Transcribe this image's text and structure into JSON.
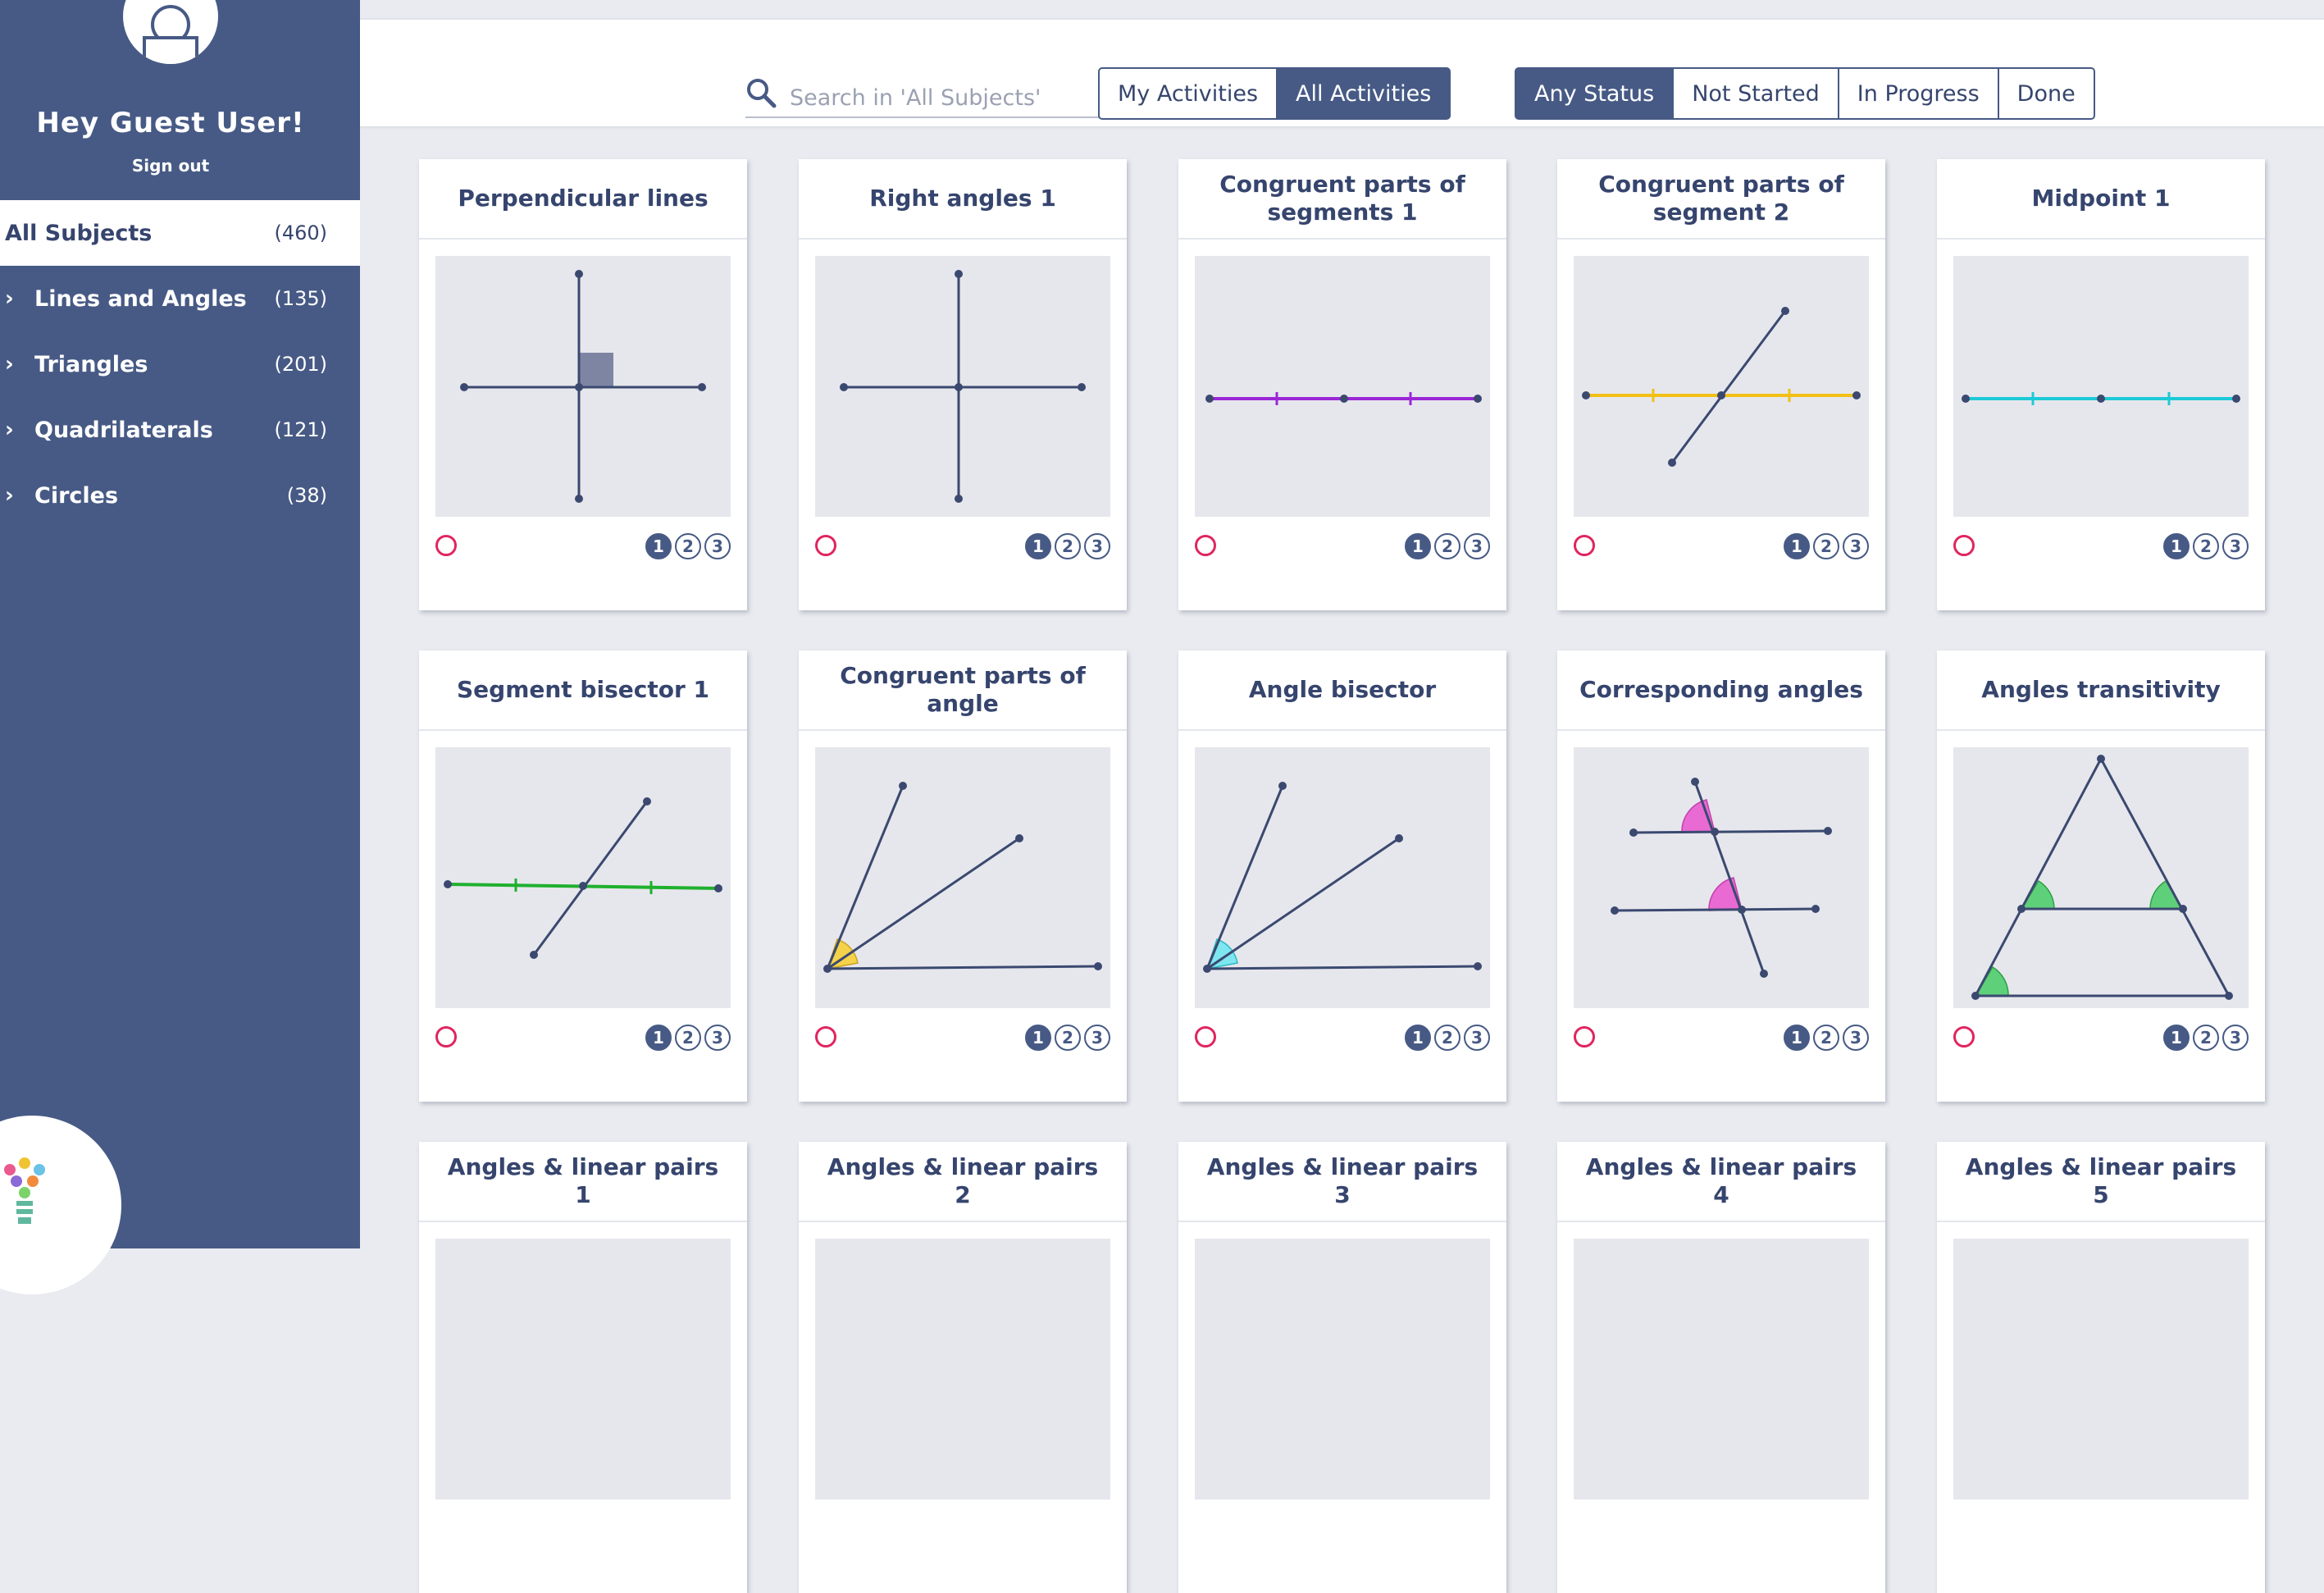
{
  "sidebar": {
    "greeting": "Hey Guest User!",
    "signout": "Sign out",
    "active": {
      "label": "All Subjects",
      "count": "(460)"
    },
    "items": [
      {
        "label": "Lines and Angles",
        "count": "(135)"
      },
      {
        "label": "Triangles",
        "count": "(201)"
      },
      {
        "label": "Quadrilaterals",
        "count": "(121)"
      },
      {
        "label": "Circles",
        "count": "(38)"
      }
    ]
  },
  "search": {
    "placeholder": "Search in 'All Subjects'"
  },
  "filters": {
    "scope": [
      "My Activities",
      "All Activities"
    ],
    "scope_selected": "All Activities",
    "status": [
      "Any Status",
      "Not Started",
      "In Progress",
      "Done"
    ],
    "status_selected": "Any Status"
  },
  "levels": [
    "1",
    "2",
    "3"
  ],
  "cards": [
    {
      "title": "Perpendicular lines"
    },
    {
      "title": "Right angles 1"
    },
    {
      "title": "Congruent parts of segments 1"
    },
    {
      "title": "Congruent parts of segment 2"
    },
    {
      "title": "Midpoint 1"
    },
    {
      "title": "Segment bisector 1"
    },
    {
      "title": "Congruent parts of angle"
    },
    {
      "title": "Angle bisector"
    },
    {
      "title": "Corresponding angles"
    },
    {
      "title": "Angles transitivity"
    },
    {
      "title": "Angles & linear pairs 1"
    },
    {
      "title": "Angles & linear pairs 2"
    },
    {
      "title": "Angles & linear pairs 3"
    },
    {
      "title": "Angles & linear pairs 4"
    },
    {
      "title": "Angles & linear pairs 5"
    }
  ],
  "colors": {
    "sidebar": "#475a85",
    "accent_status": "#e0255f",
    "purple": "#9b27d6",
    "yellow": "#f2c014",
    "cyan": "#1ccad6",
    "green": "#1fb02e",
    "pink": "#e86ad2",
    "angle_green": "#5fd07a",
    "angle_yellow": "#f4d24a",
    "angle_cyan": "#7ee6ef"
  }
}
